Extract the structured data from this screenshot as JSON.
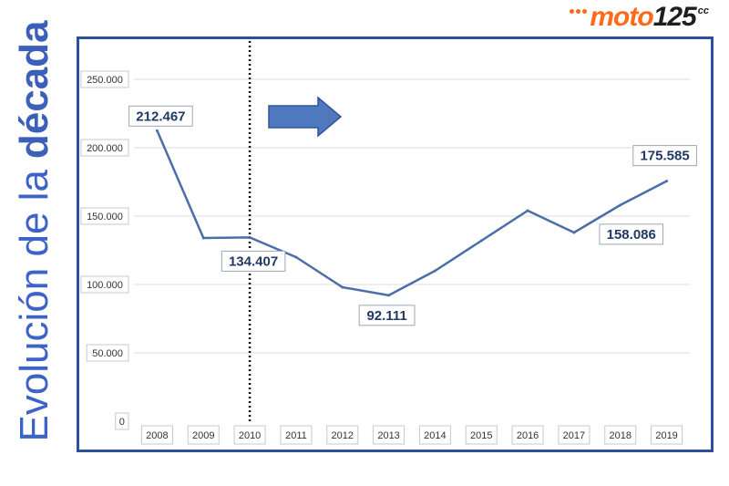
{
  "side_title": {
    "light": "Evolución de la",
    "bold": "década"
  },
  "logo": {
    "brand": "moto",
    "number": "125",
    "suffix": "cc"
  },
  "chart_data": {
    "type": "line",
    "title": "",
    "xlabel": "",
    "ylabel": "",
    "categories": [
      "2008",
      "2009",
      "2010",
      "2011",
      "2012",
      "2013",
      "2014",
      "2015",
      "2016",
      "2017",
      "2018",
      "2019"
    ],
    "values": [
      212467,
      134000,
      134407,
      120000,
      98000,
      92111,
      110000,
      132000,
      154000,
      138000,
      158086,
      175585
    ],
    "ylim": [
      0,
      250000
    ],
    "y_ticks": [
      0,
      50000,
      100000,
      150000,
      200000,
      250000
    ],
    "y_tick_labels": [
      "0",
      "50.000",
      "100.000",
      "150.000",
      "200.000",
      "250.000"
    ],
    "grid": true,
    "line_color": "#4a6ea9",
    "data_labels": [
      {
        "category": "2008",
        "text": "212.467"
      },
      {
        "category": "2010",
        "text": "134.407"
      },
      {
        "category": "2013",
        "text": "92.111"
      },
      {
        "category": "2018",
        "text": "158.086"
      },
      {
        "category": "2019",
        "text": "175.585"
      }
    ],
    "marker_line_category": "2010",
    "arrow_color": "#4f78be"
  }
}
